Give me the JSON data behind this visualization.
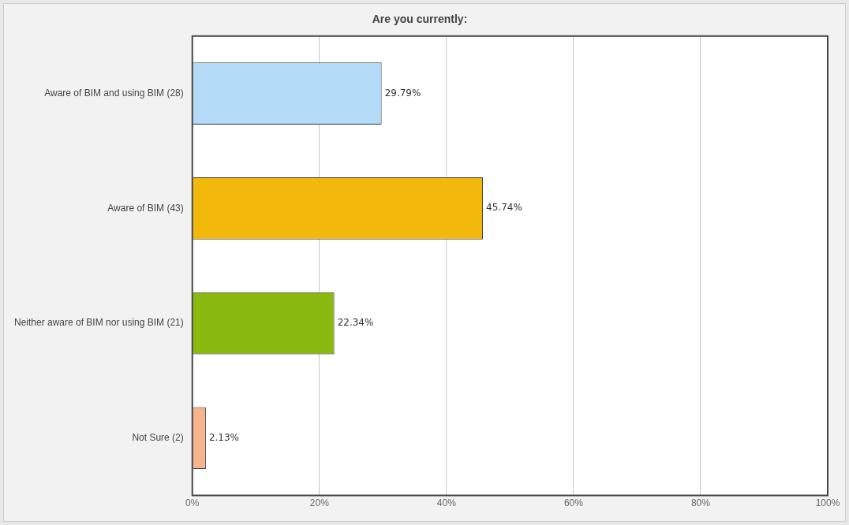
{
  "chart_data": {
    "type": "bar",
    "orientation": "horizontal",
    "title": "Are you currently:",
    "categories": [
      "Aware of BIM and using BIM (28)",
      "Aware of BIM (43)",
      "Neither aware of BIM nor using BIM (21)",
      "Not Sure (2)"
    ],
    "values": [
      29.79,
      45.74,
      22.34,
      2.13
    ],
    "colors": [
      "#b3dbf7",
      "#f2b90c",
      "#8ab90f",
      "#f7b28e"
    ],
    "value_labels": [
      "29.79%",
      "45.74%",
      "22.34%",
      "2.13%"
    ],
    "xlim": [
      0,
      100
    ],
    "xticks": [
      {
        "value": 0,
        "label": "0%"
      },
      {
        "value": 20,
        "label": "20%"
      },
      {
        "value": 40,
        "label": "40%"
      },
      {
        "value": 60,
        "label": "60%"
      },
      {
        "value": 80,
        "label": "80%"
      },
      {
        "value": 100,
        "label": "100%"
      }
    ],
    "grid": "x",
    "legend": false
  }
}
